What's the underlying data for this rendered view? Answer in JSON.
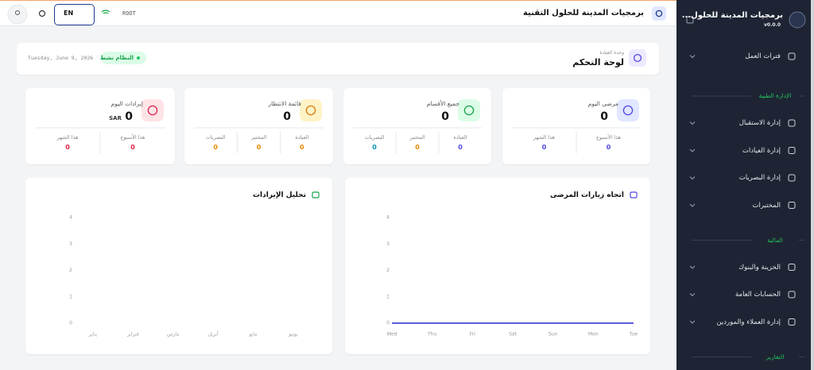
{
  "sidebar": {
    "title": "برمجيات المدينة للحلول...",
    "version": "v0.0.0",
    "top_item": "فترات العمل",
    "sections": [
      {
        "title": "الإدارة الطبية",
        "items": [
          "إدارة الاستقبال",
          "إدارة العيادات",
          "إدارة البصريات",
          "المختبرات"
        ]
      },
      {
        "title": "المالية",
        "items": [
          "الخزينة والبنوك",
          "الحسابات العامة",
          "إدارة العملاء والموردين"
        ]
      },
      {
        "title": "التقارير"
      }
    ]
  },
  "header": {
    "title": "برمجيات المدينة للحلول التقنية",
    "user": "ROOT",
    "language": "EN"
  },
  "page": {
    "unit": "وحدة العيادة",
    "title": "لوحة التحكم",
    "status": "النظام نشط",
    "date": "Tuesday, June 9, 2026"
  },
  "stats": [
    {
      "title": "مرضى اليوم",
      "value": 0,
      "details": [
        {
          "label": "هذا الأسبوع",
          "value": 0
        },
        {
          "label": "هذا الشهر",
          "value": 0
        }
      ]
    },
    {
      "title": "جميع الأقسام",
      "value": 0,
      "details": [
        {
          "label": "العيادة",
          "value": 0
        },
        {
          "label": "المختبر",
          "value": 0
        },
        {
          "label": "البصريات",
          "value": 0
        }
      ]
    },
    {
      "title": "قائمة الانتظار",
      "value": 0,
      "details": [
        {
          "label": "العيادة",
          "value": 0
        },
        {
          "label": "المختبر",
          "value": 0
        },
        {
          "label": "البصريات",
          "value": 0
        }
      ]
    },
    {
      "title": "إيرادات اليوم",
      "value": 0,
      "unit": "SAR",
      "details": [
        {
          "label": "هذا الأسبوع",
          "value": 0
        },
        {
          "label": "هذا الشهر",
          "value": 0
        }
      ]
    }
  ],
  "chart_data": [
    {
      "type": "line",
      "title": "اتجاه زيارات المرضى",
      "categories": [
        "Wed",
        "Thu",
        "Fri",
        "Sat",
        "Sun",
        "Mon",
        "Tue"
      ],
      "series": [
        {
          "color": "#5b5fe0",
          "values": [
            0,
            0,
            0,
            0,
            0,
            0,
            0
          ]
        }
      ],
      "ylim": [
        0,
        4
      ],
      "yticks": [
        0,
        1,
        2,
        3,
        4
      ]
    },
    {
      "type": "line",
      "title": "تحليل الإيرادات",
      "categories": [
        "يناير",
        "فبراير",
        "مارس",
        "أبريل",
        "مايو",
        "يونيو"
      ],
      "series": [],
      "ylim": [
        0,
        4
      ],
      "yticks": [
        0,
        1,
        2,
        3,
        4
      ]
    }
  ]
}
